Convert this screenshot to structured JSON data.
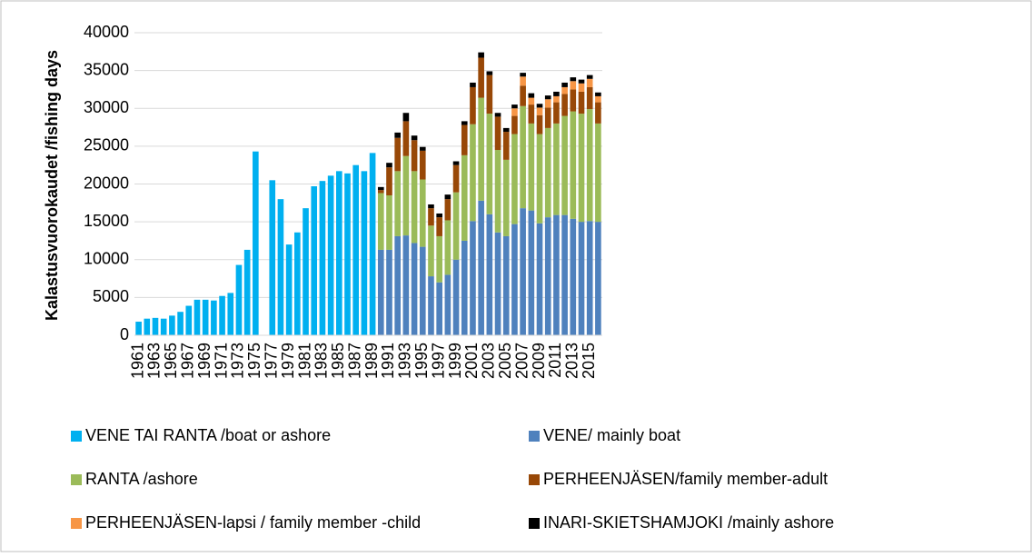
{
  "chart_data": {
    "type": "stacked_bar",
    "y_label": "Kalastusvuorokaudet /fishing days",
    "categories": [
      "1961",
      null,
      "1963",
      null,
      "1965",
      null,
      "1967",
      null,
      "1969",
      null,
      "1971",
      null,
      "1973",
      null,
      "1975",
      null,
      "1977",
      null,
      "1979",
      null,
      "1981",
      null,
      "1983",
      null,
      "1985",
      null,
      "1987",
      null,
      "1989",
      null,
      "1991",
      null,
      "1993",
      null,
      "1995",
      null,
      "1997",
      null,
      "1999",
      null,
      "2001",
      null,
      "2003",
      null,
      "2005",
      null,
      "2007",
      null,
      "2009",
      null,
      "2011",
      null,
      "2013",
      null,
      "2015",
      null
    ],
    "series": [
      {
        "name": "VENE TAI RANTA /boat or ashore",
        "color": "#00b0f0",
        "values": [
          1800,
          2200,
          2300,
          2200,
          2600,
          3100,
          3900,
          4700,
          4700,
          4600,
          5200,
          5600,
          9300,
          11300,
          24300,
          null,
          20500,
          18000,
          12000,
          13600,
          16800,
          19700,
          20400,
          21100,
          21700,
          21400,
          22500,
          21700,
          24100,
          null,
          null,
          null,
          null,
          null,
          null,
          null,
          null,
          null,
          null,
          null,
          null,
          null,
          null,
          null,
          null,
          null,
          null,
          null,
          null,
          null,
          null,
          null,
          null,
          null,
          null,
          null
        ]
      },
      {
        "name": "VENE/ mainly boat",
        "color": "#4f81bd",
        "values": [
          null,
          null,
          null,
          null,
          null,
          null,
          null,
          null,
          null,
          null,
          null,
          null,
          null,
          null,
          null,
          null,
          null,
          null,
          null,
          null,
          null,
          null,
          null,
          null,
          null,
          null,
          null,
          null,
          null,
          11300,
          11300,
          13100,
          13200,
          12200,
          11700,
          7800,
          7000,
          8000,
          10000,
          12500,
          15100,
          17800,
          16000,
          13600,
          13100,
          14700,
          16800,
          16500,
          14800,
          15600,
          15900,
          15900,
          15400,
          15000,
          15100,
          15000
        ]
      },
      {
        "name": "RANTA /ashore",
        "color": "#9bbb59",
        "values": [
          null,
          null,
          null,
          null,
          null,
          null,
          null,
          null,
          null,
          null,
          null,
          null,
          null,
          null,
          null,
          null,
          null,
          null,
          null,
          null,
          null,
          null,
          null,
          null,
          null,
          null,
          null,
          null,
          null,
          7500,
          7200,
          8600,
          10500,
          9500,
          8900,
          6700,
          6100,
          7200,
          8900,
          11300,
          12800,
          13600,
          13300,
          10900,
          10100,
          11900,
          13500,
          11500,
          11800,
          11800,
          12100,
          13100,
          14200,
          14300,
          14800,
          13000
        ]
      },
      {
        "name": "PERHEENJÄSEN/family member-adult",
        "color": "#984807",
        "values": [
          null,
          null,
          null,
          null,
          null,
          null,
          null,
          null,
          null,
          null,
          null,
          null,
          null,
          null,
          null,
          null,
          null,
          null,
          null,
          null,
          null,
          null,
          null,
          null,
          null,
          null,
          null,
          null,
          null,
          400,
          3700,
          4400,
          4600,
          4100,
          3800,
          2300,
          2500,
          2800,
          3600,
          4000,
          4900,
          5300,
          5100,
          4400,
          3700,
          2400,
          2700,
          2500,
          2500,
          2700,
          2800,
          2900,
          2900,
          2900,
          2900,
          2800
        ]
      },
      {
        "name": "PERHEENJÄSEN-lapsi / family member -child",
        "color": "#f79646",
        "values": [
          null,
          null,
          null,
          null,
          null,
          null,
          null,
          null,
          null,
          null,
          null,
          null,
          null,
          null,
          null,
          null,
          null,
          null,
          null,
          null,
          null,
          null,
          null,
          null,
          null,
          null,
          null,
          null,
          null,
          0,
          0,
          0,
          0,
          0,
          0,
          0,
          0,
          0,
          0,
          0,
          0,
          0,
          0,
          0,
          0,
          1000,
          1200,
          900,
          1000,
          1100,
          800,
          900,
          1100,
          1100,
          1100,
          800
        ]
      },
      {
        "name": "INARI-SKIETSHAMJOKI /mainly ashore",
        "color": "#000000",
        "values": [
          null,
          null,
          null,
          null,
          null,
          null,
          null,
          null,
          null,
          null,
          null,
          null,
          null,
          null,
          null,
          null,
          null,
          null,
          null,
          null,
          null,
          null,
          null,
          null,
          null,
          null,
          null,
          null,
          null,
          400,
          600,
          700,
          1100,
          600,
          500,
          500,
          500,
          600,
          500,
          500,
          600,
          700,
          500,
          500,
          500,
          500,
          500,
          600,
          500,
          500,
          600,
          600,
          500,
          500,
          500,
          500
        ]
      }
    ],
    "ylim": [
      0,
      40000
    ],
    "yticks": [
      0,
      5000,
      10000,
      15000,
      20000,
      25000,
      30000,
      35000,
      40000
    ],
    "grid": true
  }
}
